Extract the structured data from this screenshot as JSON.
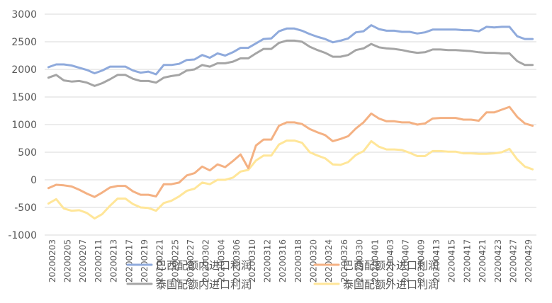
{
  "chart_data": {
    "type": "line",
    "ylim": [
      -1000,
      3000
    ],
    "yticks": [
      3000,
      2500,
      2000,
      1500,
      1000,
      500,
      0,
      -500,
      -1000
    ],
    "x_tick_labels": [
      "20200203",
      "20200205",
      "20200207",
      "20200211",
      "20200213",
      "20200217",
      "20200219",
      "20200221",
      "20200225",
      "20200227",
      "20200302",
      "20200304",
      "20200306",
      "20200310",
      "20200312",
      "20200316",
      "20200318",
      "20200320",
      "20200324",
      "20200326",
      "20200330",
      "20200401",
      "20200403",
      "20200407",
      "20200409",
      "20200413",
      "20200415",
      "20200417",
      "20200421",
      "20200423",
      "20200427",
      "20200429"
    ],
    "grid": "horizontal",
    "legend_position": "bottom",
    "series": [
      {
        "name": "巴西配额内进口利润",
        "color": "#8faadc",
        "values": [
          2040,
          2090,
          2090,
          2070,
          2030,
          1990,
          1930,
          1980,
          2050,
          2050,
          2050,
          1980,
          1940,
          1960,
          1910,
          2080,
          2080,
          2100,
          2170,
          2180,
          2260,
          2210,
          2290,
          2250,
          2310,
          2390,
          2390,
          2470,
          2550,
          2560,
          2690,
          2740,
          2740,
          2700,
          2640,
          2590,
          2550,
          2490,
          2520,
          2560,
          2670,
          2690,
          2800,
          2730,
          2700,
          2700,
          2680,
          2680,
          2650,
          2670,
          2720,
          2720,
          2720,
          2720,
          2710,
          2710,
          2690,
          2770,
          2760,
          2770,
          2770,
          2600,
          2550,
          2550
        ]
      },
      {
        "name": "巴西配额外进口利润",
        "color": "#f4b183",
        "values": [
          -150,
          -90,
          -100,
          -120,
          -180,
          -250,
          -310,
          -230,
          -140,
          -110,
          -110,
          -210,
          -270,
          -270,
          -300,
          -80,
          -80,
          -50,
          80,
          120,
          240,
          170,
          280,
          230,
          340,
          460,
          210,
          620,
          730,
          730,
          980,
          1040,
          1040,
          1010,
          920,
          860,
          810,
          700,
          740,
          790,
          930,
          1040,
          1200,
          1110,
          1060,
          1060,
          1040,
          1040,
          1000,
          1020,
          1110,
          1120,
          1120,
          1120,
          1090,
          1090,
          1070,
          1220,
          1220,
          1270,
          1320,
          1140,
          1020,
          980
        ]
      },
      {
        "name": "泰国配额内进口利润",
        "color": "#a5a5a5",
        "values": [
          1850,
          1900,
          1800,
          1780,
          1790,
          1760,
          1700,
          1750,
          1820,
          1900,
          1900,
          1830,
          1790,
          1790,
          1760,
          1850,
          1880,
          1900,
          1980,
          2000,
          2080,
          2050,
          2110,
          2110,
          2140,
          2200,
          2200,
          2290,
          2370,
          2370,
          2480,
          2520,
          2520,
          2500,
          2410,
          2350,
          2300,
          2230,
          2230,
          2260,
          2350,
          2380,
          2460,
          2400,
          2380,
          2370,
          2350,
          2320,
          2300,
          2310,
          2360,
          2360,
          2350,
          2350,
          2340,
          2330,
          2310,
          2300,
          2300,
          2290,
          2290,
          2150,
          2080,
          2080
        ]
      },
      {
        "name": "泰国配额外进口利润",
        "color": "#ffe699",
        "values": [
          -430,
          -350,
          -520,
          -560,
          -550,
          -600,
          -700,
          -620,
          -470,
          -340,
          -340,
          -440,
          -500,
          -510,
          -560,
          -420,
          -380,
          -300,
          -200,
          -160,
          -50,
          -80,
          0,
          0,
          40,
          150,
          180,
          350,
          440,
          440,
          640,
          710,
          710,
          670,
          500,
          440,
          390,
          280,
          270,
          320,
          450,
          520,
          700,
          600,
          550,
          550,
          540,
          490,
          430,
          430,
          520,
          520,
          510,
          510,
          480,
          480,
          470,
          470,
          480,
          500,
          560,
          370,
          240,
          190
        ]
      }
    ]
  }
}
